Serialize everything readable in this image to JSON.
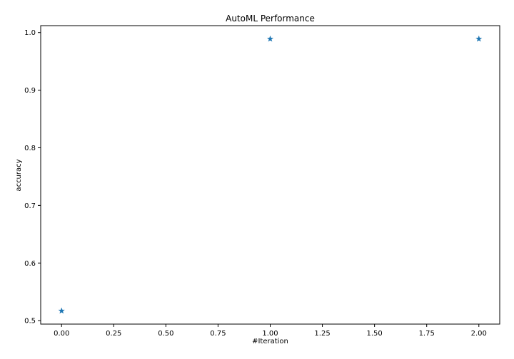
{
  "chart_data": {
    "type": "scatter",
    "title": "AutoML Performance",
    "xlabel": "#Iteration",
    "ylabel": "accuracy",
    "marker": "star",
    "color": "#1f77b4",
    "xlim": [
      -0.1,
      2.1
    ],
    "ylim": [
      0.494,
      1.012
    ],
    "xticks": [
      0.0,
      0.25,
      0.5,
      0.75,
      1.0,
      1.25,
      1.5,
      1.75,
      2.0
    ],
    "xtick_labels": [
      "0.00",
      "0.25",
      "0.50",
      "0.75",
      "1.00",
      "1.25",
      "1.50",
      "1.75",
      "2.00"
    ],
    "yticks": [
      0.5,
      0.6,
      0.7,
      0.8,
      0.9,
      1.0
    ],
    "ytick_labels": [
      "0.5",
      "0.6",
      "0.7",
      "0.8",
      "0.9",
      "1.0"
    ],
    "series": [
      {
        "name": "accuracy",
        "x": [
          0,
          1,
          2
        ],
        "y": [
          0.517,
          0.989,
          0.989
        ]
      }
    ]
  }
}
